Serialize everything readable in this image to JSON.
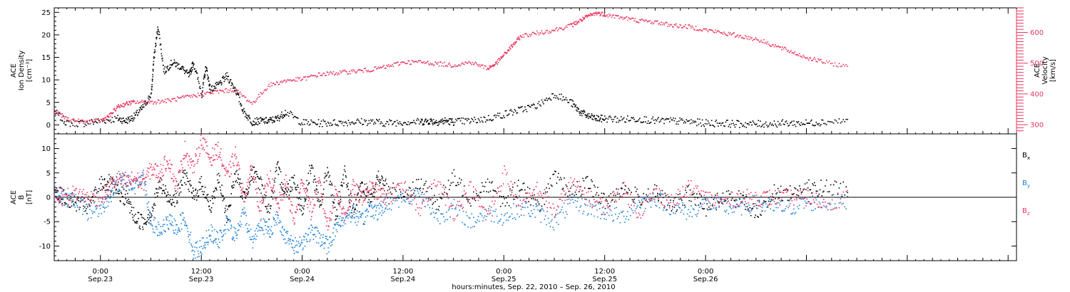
{
  "chart_data": [
    {
      "type": "scatter",
      "panel": "top",
      "ylabel_lines": [
        "ACE",
        "Ion Density",
        "[cm⁻³]"
      ],
      "ylabel2_lines": [
        "ACE",
        "Velocity",
        "[km/s]"
      ],
      "ylim": [
        -2,
        26
      ],
      "ylim2": [
        270,
        680
      ],
      "yticks": [
        0,
        5,
        10,
        15,
        20,
        25
      ],
      "yticks2": [
        300,
        400,
        500,
        600
      ],
      "colors": {
        "density": "#000000",
        "velocity": "#e8365f"
      },
      "series": [
        {
          "key": "density",
          "x": [
            -5.5,
            -4,
            -2,
            0,
            2,
            3,
            4,
            5,
            6,
            6.3,
            6.8,
            7.5,
            8.5,
            9.5,
            10.5,
            11,
            12,
            12.5,
            13,
            14,
            15,
            16,
            17,
            18,
            19,
            20,
            21,
            22,
            24,
            26,
            28,
            30,
            32,
            34,
            36,
            38,
            39,
            40,
            41,
            42,
            44,
            46,
            48,
            50,
            52,
            54,
            56,
            57,
            58,
            59,
            60,
            62,
            64,
            66,
            68,
            70,
            72,
            74,
            76,
            78,
            80,
            82,
            84,
            86,
            89
          ],
          "y": [
            3,
            0.5,
            0.5,
            1,
            1.5,
            1,
            2,
            4,
            7,
            15,
            22,
            12,
            14,
            13,
            11,
            14,
            7,
            13,
            8,
            9,
            11,
            8,
            3,
            0.8,
            1,
            1,
            1.5,
            3,
            0.6,
            0.5,
            0.6,
            0.8,
            0.8,
            0.5,
            0.8,
            0.8,
            1,
            0.8,
            1,
            0.8,
            1,
            1.5,
            2.5,
            3.5,
            4.5,
            7,
            5,
            3,
            2,
            1.5,
            1.5,
            1.3,
            1.5,
            1,
            1,
            0.8,
            0.5,
            0.5,
            0.3,
            0.3,
            0.4,
            0.5,
            0.5,
            0.8,
            1
          ]
        },
        {
          "key": "velocity",
          "x": [
            -5.5,
            -4,
            -2,
            0,
            1,
            2,
            3,
            4,
            6,
            8,
            10,
            12,
            14,
            16,
            18,
            20,
            22,
            24,
            26,
            28,
            30,
            32,
            34,
            36,
            38,
            40,
            42,
            44,
            46,
            47,
            48,
            49,
            50,
            52,
            54,
            56,
            57,
            58,
            59,
            60,
            62,
            64,
            66,
            68,
            70,
            72,
            74,
            76,
            78,
            80,
            82,
            84,
            86,
            89
          ],
          "y": [
            345,
            320,
            310,
            315,
            330,
            360,
            370,
            375,
            375,
            380,
            390,
            400,
            410,
            415,
            370,
            430,
            445,
            450,
            465,
            470,
            475,
            480,
            490,
            505,
            505,
            500,
            495,
            505,
            485,
            500,
            530,
            560,
            590,
            600,
            610,
            625,
            640,
            655,
            665,
            660,
            650,
            640,
            635,
            625,
            620,
            610,
            600,
            590,
            580,
            560,
            540,
            520,
            505,
            490
          ]
        }
      ]
    },
    {
      "type": "scatter",
      "panel": "bottom",
      "ylabel_lines": [
        "ACE",
        "B",
        "[nT]"
      ],
      "ylim": [
        -13,
        13
      ],
      "yticks": [
        -10,
        -5,
        0,
        5,
        10
      ],
      "legend_position": "right",
      "series": [
        {
          "key": "Bx",
          "color": "#000000",
          "x": [
            -5.5,
            -4.5,
            -3,
            -1.5,
            0,
            1,
            2,
            3,
            4,
            5,
            6,
            7,
            8,
            9,
            10,
            11,
            12,
            13,
            14,
            15,
            16,
            17,
            18,
            19,
            20,
            21,
            22,
            23,
            24,
            25,
            26,
            27,
            28,
            29,
            30,
            31,
            32,
            33,
            34,
            36,
            38,
            40,
            42,
            44,
            46,
            48,
            50,
            52,
            54,
            56,
            58,
            60,
            62,
            64,
            66,
            68,
            70,
            72,
            74,
            76,
            78,
            80,
            82,
            84,
            86,
            89
          ],
          "y": [
            2,
            0,
            -1,
            -2,
            3,
            3,
            1,
            0,
            -4,
            -5,
            -3,
            3,
            0,
            0,
            5,
            0,
            3,
            -2,
            4,
            -4,
            5,
            0,
            5,
            3,
            -3,
            6,
            1,
            4,
            -3,
            7,
            -2,
            6,
            -4,
            5,
            -3,
            2,
            0,
            4,
            2,
            1,
            3,
            -1,
            4,
            0,
            3,
            -1,
            3,
            -2,
            4,
            1,
            3,
            -1,
            2,
            0,
            1,
            -2,
            1,
            -2,
            0,
            0,
            -3,
            1,
            1,
            2,
            2,
            2
          ]
        },
        {
          "key": "By",
          "color": "#1b7fd9",
          "x": [
            -5.5,
            -4.5,
            -3,
            -1.5,
            0,
            1,
            2,
            3,
            4,
            5,
            6,
            7,
            8,
            9,
            10,
            11,
            12,
            13,
            14,
            15,
            16,
            17,
            18,
            19,
            20,
            21,
            22,
            23,
            24,
            25,
            26,
            27,
            28,
            29,
            30,
            31,
            32,
            33,
            34,
            36,
            38,
            40,
            42,
            44,
            46,
            48,
            50,
            52,
            54,
            56,
            58,
            60,
            62,
            64,
            66,
            68,
            70,
            72,
            74,
            76,
            78,
            80,
            82,
            84,
            86,
            89
          ],
          "y": [
            2,
            0,
            -1,
            -3,
            -2,
            0,
            3,
            4,
            2,
            5,
            -5,
            -7,
            -5,
            -6,
            -4,
            -11,
            -10,
            -7,
            -9,
            -5,
            -8,
            -3,
            -9,
            -5,
            -7,
            -4,
            -8,
            -10,
            -9,
            -7,
            -8,
            -10,
            -6,
            -4,
            -3,
            -5,
            -2,
            -3,
            -1,
            0,
            1,
            -4,
            -2,
            -5,
            -3,
            -4,
            -2,
            -3,
            -5,
            -1,
            -2,
            -3,
            -4,
            -1,
            0,
            -2,
            -3,
            -1,
            -2,
            -2,
            -1,
            -2,
            -2,
            -1,
            -1,
            -1
          ]
        },
        {
          "key": "Bz",
          "color": "#e8365f",
          "x": [
            -5.5,
            -4.5,
            -3,
            -1.5,
            0,
            1,
            2,
            3,
            4,
            5,
            6,
            7,
            8,
            9,
            10,
            11,
            12,
            13,
            14,
            15,
            16,
            17,
            18,
            19,
            20,
            21,
            22,
            23,
            24,
            25,
            26,
            27,
            28,
            29,
            30,
            31,
            32,
            33,
            34,
            36,
            38,
            40,
            42,
            44,
            46,
            48,
            50,
            52,
            54,
            56,
            58,
            60,
            62,
            64,
            66,
            68,
            70,
            72,
            74,
            76,
            78,
            80,
            82,
            84,
            86,
            89
          ],
          "y": [
            1,
            0,
            1,
            0,
            0,
            2,
            4,
            3,
            4,
            3,
            6,
            5,
            8,
            2,
            10,
            6,
            12,
            8,
            10,
            4,
            9,
            0,
            6,
            -3,
            5,
            -2,
            3,
            -5,
            4,
            -3,
            3,
            -6,
            2,
            -4,
            2,
            0,
            2,
            1,
            0,
            2,
            -2,
            3,
            -3,
            2,
            -4,
            5,
            -2,
            2,
            -3,
            3,
            0,
            -2,
            2,
            -3,
            1,
            -1,
            2,
            0,
            -1,
            0,
            0,
            0,
            0,
            0,
            -1,
            0
          ]
        }
      ],
      "legend": [
        {
          "base": "B",
          "sub": "x"
        },
        {
          "base": "B",
          "sub": "y"
        },
        {
          "base": "B",
          "sub": "z"
        }
      ]
    }
  ],
  "xaxis": {
    "xlim": [
      -5.5,
      109
    ],
    "xlabel": "hours:minutes, Sep. 22, 2010 – Sep. 26, 2010",
    "ticks": [
      {
        "x": 0,
        "time": "0:00",
        "date": "Sep.23"
      },
      {
        "x": 12,
        "time": "12:00",
        "date": "Sep.23"
      },
      {
        "x": 24,
        "time": "0:00",
        "date": "Sep.24"
      },
      {
        "x": 36,
        "time": "12:00",
        "date": "Sep.24"
      },
      {
        "x": 48,
        "time": "0:00",
        "date": "Sep.25"
      },
      {
        "x": 60,
        "time": "12:00",
        "date": "Sep.25"
      },
      {
        "x": 72,
        "time": "0:00",
        "date": "Sep.26"
      }
    ]
  }
}
